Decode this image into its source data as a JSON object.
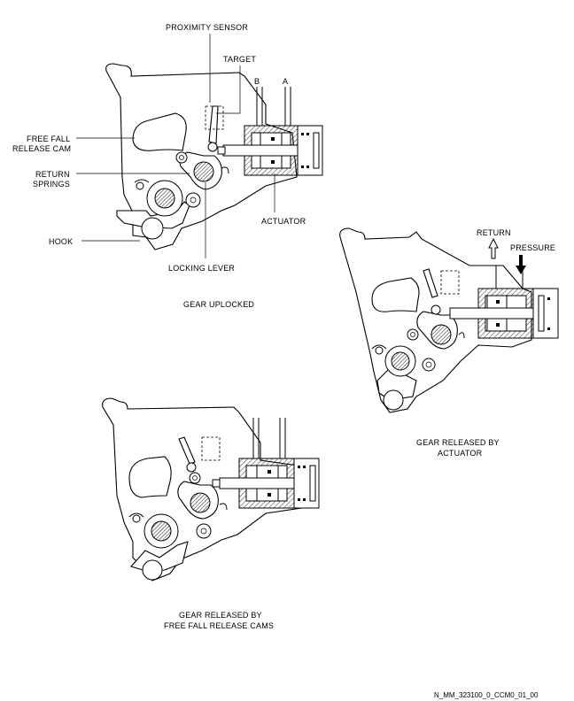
{
  "labels": {
    "proximity_sensor": "PROXIMITY SENSOR",
    "target": "TARGET",
    "b": "B",
    "a": "A",
    "free_fall_line1": "FREE FALL",
    "free_fall_line2": "RELEASE CAM",
    "return_springs_line1": "RETURN",
    "return_springs_line2": "SPRINGS",
    "actuator": "ACTUATOR",
    "hook": "HOOK",
    "locking_lever": "LOCKING LEVER",
    "return": "RETURN",
    "pressure": "PRESSURE"
  },
  "captions": {
    "uplocked": "GEAR UPLOCKED",
    "by_actuator_line1": "GEAR RELEASED BY",
    "by_actuator_line2": "ACTUATOR",
    "by_freefall_line1": "GEAR RELEASED BY",
    "by_freefall_line2": "FREE FALL RELEASE CAMS"
  },
  "figure_id": "N_MM_323100_0_CCM0_01_00"
}
